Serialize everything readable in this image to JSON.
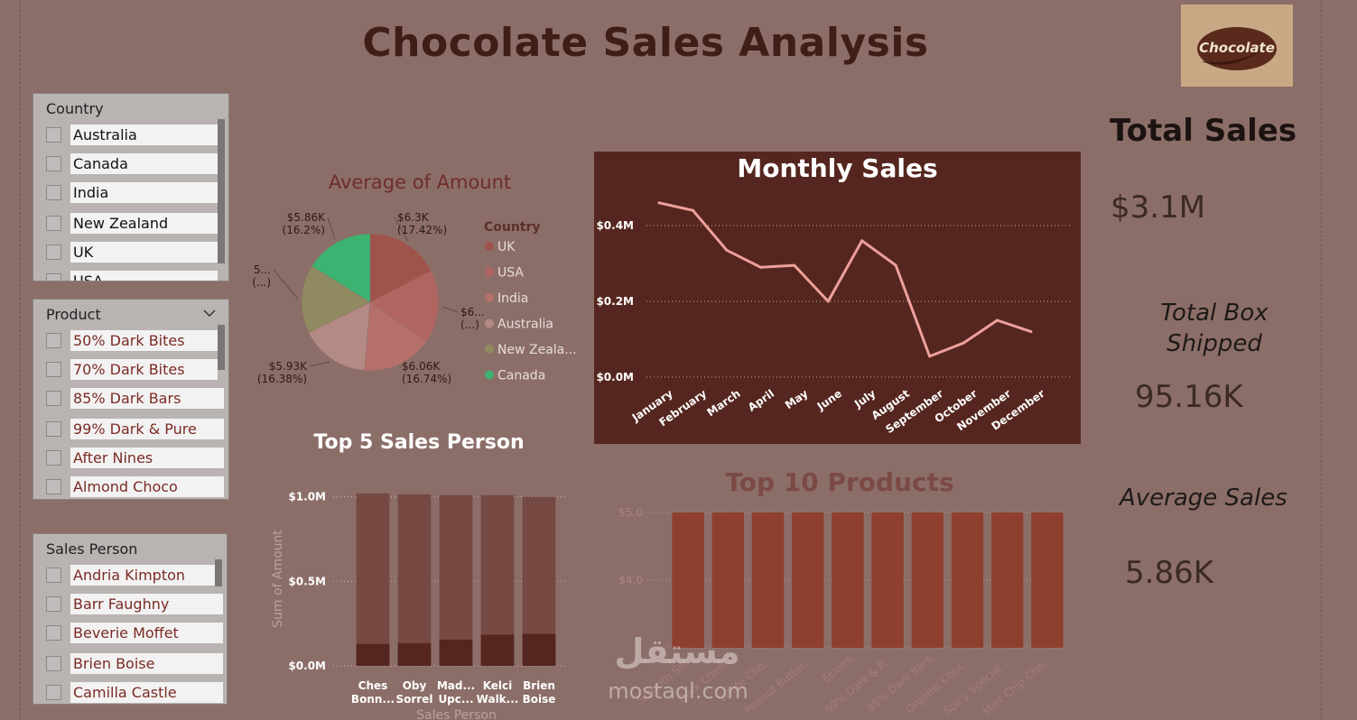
{
  "title": "Chocolate Sales Analysis",
  "logo_text": "Chocolate",
  "watermark": {
    "arabic": "مستقل",
    "latin": "mostaql.com"
  },
  "slicers": {
    "country": {
      "title": "Country",
      "items": [
        "Australia",
        "Canada",
        "India",
        "New Zealand",
        "UK",
        "USA"
      ]
    },
    "product": {
      "title": "Product",
      "items": [
        "50% Dark Bites",
        "70% Dark Bites",
        "85% Dark Bars",
        "99% Dark & Pure",
        "After Nines",
        "Almond Choco"
      ]
    },
    "sales_person": {
      "title": "Sales Person",
      "items": [
        "Andria Kimpton",
        "Barr Faughny",
        "Beverie Moffet",
        "Brien Boise",
        "Camilla Castle"
      ]
    }
  },
  "kpis": {
    "total_sales": {
      "label": "Total Sales",
      "value": "$3.1M"
    },
    "total_box": {
      "label_line1": "Total Box",
      "label_line2": "Shipped",
      "value": "95.16K"
    },
    "average_sales": {
      "label": "Average Sales",
      "value": "5.86K"
    }
  },
  "colors": {
    "background": "#8c6e69",
    "title": "#3e1e17",
    "monthly_bg": "#55261f",
    "monthly_line": "#eea09b",
    "top5_bar": "#764a43",
    "top5_bar_dark": "#55261f",
    "top10_bar": "#8e3f2e"
  },
  "chart_data": [
    {
      "type": "pie",
      "title": "Average of Amount",
      "legend_title": "Country",
      "legend_position": "right",
      "slices": [
        {
          "name": "UK",
          "value": 6.3,
          "label": "$6.3K",
          "pct": "(17.42%)",
          "color": "#a0534b"
        },
        {
          "name": "USA",
          "value": 6.2,
          "label": "$6...",
          "pct": "(...)",
          "color": "#b06560"
        },
        {
          "name": "India",
          "value": 6.06,
          "label": "$6.06K",
          "pct": "(16.74%)",
          "color": "#b5706b"
        },
        {
          "name": "Australia",
          "value": 5.93,
          "label": "$5.93K",
          "pct": "(16.38%)",
          "color": "#b48a85"
        },
        {
          "name": "New Zealand",
          "value": 5.82,
          "label": "$5...",
          "pct": "(...)",
          "color": "#8f8a60"
        },
        {
          "name": "Canada",
          "value": 5.86,
          "label": "$5.86K",
          "pct": "(16.2%)",
          "color": "#3cb371"
        }
      ],
      "legend_labels": [
        "UK",
        "USA",
        "India",
        "Australia",
        "New Zeala...",
        "Canada"
      ]
    },
    {
      "type": "line",
      "title": "Monthly Sales",
      "categories": [
        "January",
        "February",
        "March",
        "April",
        "May",
        "June",
        "July",
        "August",
        "September",
        "October",
        "November",
        "December"
      ],
      "values": [
        0.46,
        0.44,
        0.335,
        0.29,
        0.295,
        0.2,
        0.36,
        0.295,
        0.055,
        0.09,
        0.15,
        0.12
      ],
      "yticks": [
        0,
        0.2,
        0.4
      ],
      "ytick_labels": [
        "$0.0M",
        "$0.2M",
        "$0.4M"
      ],
      "ylim": [
        0,
        0.5
      ],
      "grid": true
    },
    {
      "type": "bar",
      "title": "Top 5 Sales Person",
      "xlabel": "Sales Person",
      "ylabel": "Sum of Amount",
      "categories": [
        "Ches Bonn...",
        "Oby Sorrel",
        "Mad... Upc...",
        "Kelci Walk...",
        "Brien Boise"
      ],
      "category_lines": [
        [
          "Ches",
          "Bonn..."
        ],
        [
          "Oby",
          "Sorrel"
        ],
        [
          "Mad...",
          "Upc..."
        ],
        [
          "Kelci",
          "Walk..."
        ],
        [
          "Brien",
          "Boise"
        ]
      ],
      "series": [
        {
          "values": [
            0.13,
            0.135,
            0.155,
            0.185,
            0.19
          ]
        },
        {
          "values": [
            0.89,
            0.88,
            0.855,
            0.825,
            0.81
          ]
        }
      ],
      "yticks": [
        0,
        0.5,
        1.0
      ],
      "ytick_labels": [
        "$0.0M",
        "$0.5M",
        "$1.0M"
      ],
      "ylim": [
        0,
        1.03
      ],
      "grid": true
    },
    {
      "type": "bar",
      "title": "Top 10 Products",
      "categories": [
        "Smooth Sil...",
        "Dark Chee...",
        "White Cho...",
        "Peanut Butter...",
        "Eclairs",
        "99% Dark & P...",
        "85% Dark Bars",
        "Organic Choc...",
        "Spicy Special ...",
        "Mint Chip Cho..."
      ],
      "values": [
        5,
        5,
        5,
        5,
        5,
        5,
        5,
        5,
        5,
        5
      ],
      "yticks": [
        4,
        5
      ],
      "ytick_labels": [
        "$4.0",
        "$5.0"
      ],
      "ylim": [
        3,
        5
      ],
      "grid": true
    }
  ]
}
